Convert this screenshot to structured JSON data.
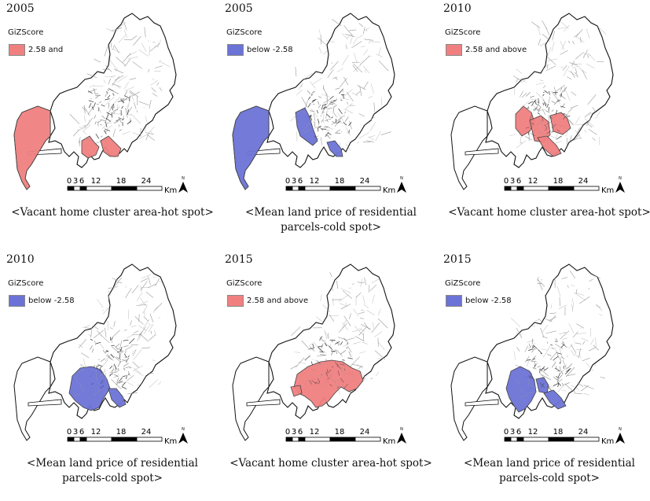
{
  "colors": {
    "hot": "#f08080",
    "cold": "#6b73d6",
    "outline": "#111111",
    "district": "#9a9a9a"
  },
  "legend_title": "GiZScore",
  "scale": {
    "ticks": [
      "0",
      "3",
      "6",
      "12",
      "18",
      "24"
    ],
    "unit": "Km",
    "north": "N"
  },
  "panels": [
    {
      "year": "2005",
      "legend_label": "2.58 and",
      "spot": "hot",
      "caption": [
        "<Vacant home cluster area-hot spot>"
      ]
    },
    {
      "year": "2005",
      "legend_label": "below -2.58",
      "spot": "cold",
      "caption": [
        "<Mean land price of residential",
        "parcels-cold spot>"
      ]
    },
    {
      "year": "2010",
      "legend_label": "2.58 and above",
      "spot": "hot",
      "caption": [
        "<Vacant home cluster area-hot spot>"
      ]
    },
    {
      "year": "2010",
      "legend_label": "below -2.58",
      "spot": "cold",
      "caption": [
        "<Mean land price of residential",
        "parcels-cold spot>"
      ]
    },
    {
      "year": "2015",
      "legend_label": "2.58 and above",
      "spot": "hot",
      "caption": [
        "<Vacant home cluster area-hot spot>"
      ]
    },
    {
      "year": "2015",
      "legend_label": "below -2.58",
      "spot": "cold",
      "caption": [
        "<Mean land price of residential",
        "parcels-cold spot>"
      ]
    }
  ]
}
